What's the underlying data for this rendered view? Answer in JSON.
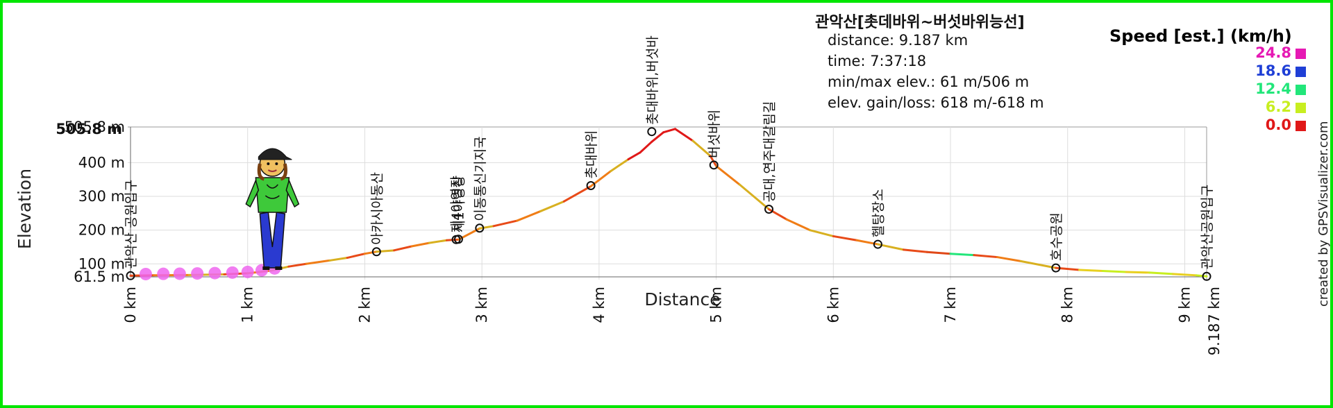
{
  "chart_data": {
    "type": "line",
    "xlabel": "Distance",
    "ylabel": "Elevation",
    "xlim": [
      0,
      9.187
    ],
    "ylim": [
      61.5,
      505.8
    ],
    "x_ticks": [
      "0 km",
      "1 km",
      "2 km",
      "3 km",
      "4 km",
      "5 km",
      "6 km",
      "7 km",
      "8 km",
      "9 km"
    ],
    "x_end_tick": "9.187 km",
    "y_ticks": [
      {
        "label": "61.5 m",
        "value": 61.5
      },
      {
        "label": "100 m",
        "value": 100
      },
      {
        "label": "200 m",
        "value": 200
      },
      {
        "label": "300 m",
        "value": 300
      },
      {
        "label": "400 m",
        "value": 400
      },
      {
        "label": "505.8 m",
        "value": 505.8
      }
    ],
    "profile": {
      "x": [
        0,
        0.2,
        0.5,
        0.8,
        1.0,
        1.2,
        1.35,
        1.5,
        1.7,
        1.85,
        2.0,
        2.1,
        2.25,
        2.4,
        2.55,
        2.7,
        2.8,
        2.98,
        3.1,
        3.3,
        3.5,
        3.7,
        3.93,
        4.1,
        4.25,
        4.35,
        4.45,
        4.55,
        4.65,
        4.8,
        4.95,
        5.0,
        5.2,
        5.45,
        5.6,
        5.8,
        6.0,
        6.2,
        6.38,
        6.6,
        6.8,
        7.0,
        7.2,
        7.4,
        7.6,
        7.9,
        8.1,
        8.3,
        8.5,
        8.7,
        8.9,
        9.1,
        9.187
      ],
      "y": [
        65,
        66,
        67,
        69,
        72,
        80,
        92,
        100,
        110,
        118,
        130,
        136,
        140,
        152,
        162,
        170,
        172,
        205,
        212,
        228,
        256,
        285,
        330,
        375,
        410,
        430,
        462,
        490,
        500,
        465,
        420,
        390,
        335,
        262,
        232,
        200,
        182,
        170,
        158,
        142,
        135,
        130,
        126,
        120,
        108,
        88,
        82,
        79,
        76,
        74,
        70,
        66,
        63
      ]
    },
    "waypoints": [
      {
        "name": "관악산 공원입구",
        "x": 0,
        "y": 65
      },
      {
        "name": "아카시아동산",
        "x": 2.1,
        "y": 136
      },
      {
        "name": "제4야영장",
        "x": 2.78,
        "y": 172
      },
      {
        "name": "제1야영장",
        "x": 2.8,
        "y": 173
      },
      {
        "name": "이동통신기지국",
        "x": 2.98,
        "y": 206
      },
      {
        "name": "촛대바위",
        "x": 3.93,
        "y": 332
      },
      {
        "name": "촛대바위,버섯바",
        "x": 4.45,
        "y": 492
      },
      {
        "name": "버섯바위",
        "x": 4.98,
        "y": 393
      },
      {
        "name": "공대,연주대갈림길",
        "x": 5.45,
        "y": 262
      },
      {
        "name": "헬탕장소",
        "x": 6.38,
        "y": 158
      },
      {
        "name": "호수공원",
        "x": 7.9,
        "y": 88
      },
      {
        "name": "관악산공원입구",
        "x": 9.187,
        "y": 63
      }
    ],
    "history_dots_x": [
      0.13,
      0.28,
      0.42,
      0.57,
      0.72,
      0.87,
      1.0,
      1.12,
      1.23
    ],
    "cursor_x": 1.3,
    "legend": {
      "title": "Speed [est.] (km/h)",
      "entries": [
        {
          "label": "24.8",
          "color": "#e619b4"
        },
        {
          "label": "18.6",
          "color": "#1f3fd6"
        },
        {
          "label": "12.4",
          "color": "#22e67a"
        },
        {
          "label": "6.2",
          "color": "#c8ee20"
        },
        {
          "label": "0.0",
          "color": "#e01818"
        }
      ]
    },
    "info": {
      "title": "관악산[촛데바위~버섯바위능선]",
      "lines": [
        "distance: 9.187 km",
        "time: 7:37:18",
        "min/max elev.: 61 m/506 m",
        "elev. gain/loss: 618 m/-618 m"
      ]
    },
    "credit": "created by GPSVisualizer.com"
  }
}
